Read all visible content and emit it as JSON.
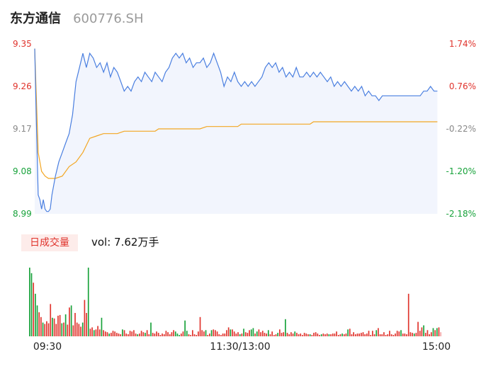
{
  "header": {
    "name": "东方通信",
    "code": "600776.SH"
  },
  "volume": {
    "badge": "日成交量",
    "label": "vol: 7.62万手"
  },
  "colors": {
    "up": "#e0332c",
    "down": "#17a23a",
    "flat": "#888888",
    "price_line": "#4a7fe0",
    "avg_line": "#f3a622",
    "area_fill": "#f2f5fd"
  },
  "chart_data": {
    "type": "line",
    "y_left_ticks": [
      "9.35",
      "9.26",
      "9.17",
      "9.08",
      "8.99"
    ],
    "y_right_ticks": [
      "1.74%",
      "0.76%",
      "-0.22%",
      "-1.20%",
      "-2.18%"
    ],
    "tick_colors": [
      "#e0332c",
      "#e0332c",
      "#888888",
      "#17a23a",
      "#17a23a"
    ],
    "ylim": [
      8.99,
      9.35
    ],
    "x_labels": [
      "09:30",
      "11:30/13:00",
      "15:00"
    ],
    "total_minutes": 240,
    "price_series": [
      [
        0,
        9.34
      ],
      [
        1,
        9.18
      ],
      [
        2,
        9.03
      ],
      [
        3,
        9.02
      ],
      [
        4,
        9.0
      ],
      [
        5,
        9.02
      ],
      [
        6,
        9.0
      ],
      [
        7,
        8.995
      ],
      [
        8,
        8.995
      ],
      [
        9,
        9.0
      ],
      [
        10,
        9.03
      ],
      [
        12,
        9.07
      ],
      [
        14,
        9.1
      ],
      [
        16,
        9.12
      ],
      [
        18,
        9.14
      ],
      [
        20,
        9.16
      ],
      [
        22,
        9.2
      ],
      [
        24,
        9.27
      ],
      [
        26,
        9.3
      ],
      [
        28,
        9.33
      ],
      [
        30,
        9.3
      ],
      [
        32,
        9.33
      ],
      [
        34,
        9.32
      ],
      [
        36,
        9.3
      ],
      [
        38,
        9.31
      ],
      [
        40,
        9.29
      ],
      [
        42,
        9.31
      ],
      [
        44,
        9.28
      ],
      [
        46,
        9.3
      ],
      [
        48,
        9.29
      ],
      [
        50,
        9.27
      ],
      [
        52,
        9.25
      ],
      [
        54,
        9.26
      ],
      [
        56,
        9.25
      ],
      [
        58,
        9.27
      ],
      [
        60,
        9.28
      ],
      [
        62,
        9.27
      ],
      [
        64,
        9.29
      ],
      [
        66,
        9.28
      ],
      [
        68,
        9.27
      ],
      [
        70,
        9.29
      ],
      [
        72,
        9.28
      ],
      [
        74,
        9.27
      ],
      [
        76,
        9.29
      ],
      [
        78,
        9.3
      ],
      [
        80,
        9.32
      ],
      [
        82,
        9.33
      ],
      [
        84,
        9.32
      ],
      [
        86,
        9.33
      ],
      [
        88,
        9.31
      ],
      [
        90,
        9.32
      ],
      [
        92,
        9.3
      ],
      [
        94,
        9.31
      ],
      [
        96,
        9.31
      ],
      [
        98,
        9.32
      ],
      [
        100,
        9.3
      ],
      [
        102,
        9.31
      ],
      [
        104,
        9.33
      ],
      [
        106,
        9.31
      ],
      [
        108,
        9.29
      ],
      [
        110,
        9.26
      ],
      [
        112,
        9.28
      ],
      [
        114,
        9.27
      ],
      [
        116,
        9.29
      ],
      [
        118,
        9.27
      ],
      [
        120,
        9.26
      ],
      [
        122,
        9.27
      ],
      [
        124,
        9.26
      ],
      [
        126,
        9.27
      ],
      [
        128,
        9.26
      ],
      [
        130,
        9.27
      ],
      [
        132,
        9.28
      ],
      [
        134,
        9.3
      ],
      [
        136,
        9.31
      ],
      [
        138,
        9.3
      ],
      [
        140,
        9.31
      ],
      [
        142,
        9.29
      ],
      [
        144,
        9.3
      ],
      [
        146,
        9.28
      ],
      [
        148,
        9.29
      ],
      [
        150,
        9.28
      ],
      [
        152,
        9.3
      ],
      [
        154,
        9.28
      ],
      [
        156,
        9.28
      ],
      [
        158,
        9.29
      ],
      [
        160,
        9.28
      ],
      [
        162,
        9.29
      ],
      [
        164,
        9.28
      ],
      [
        166,
        9.29
      ],
      [
        168,
        9.28
      ],
      [
        170,
        9.27
      ],
      [
        172,
        9.28
      ],
      [
        174,
        9.26
      ],
      [
        176,
        9.27
      ],
      [
        178,
        9.26
      ],
      [
        180,
        9.27
      ],
      [
        182,
        9.26
      ],
      [
        184,
        9.25
      ],
      [
        186,
        9.26
      ],
      [
        188,
        9.25
      ],
      [
        190,
        9.26
      ],
      [
        192,
        9.24
      ],
      [
        194,
        9.25
      ],
      [
        196,
        9.24
      ],
      [
        198,
        9.24
      ],
      [
        200,
        9.23
      ],
      [
        202,
        9.24
      ],
      [
        204,
        9.24
      ],
      [
        206,
        9.24
      ],
      [
        208,
        9.24
      ],
      [
        210,
        9.24
      ],
      [
        212,
        9.24
      ],
      [
        214,
        9.24
      ],
      [
        216,
        9.24
      ],
      [
        218,
        9.24
      ],
      [
        220,
        9.24
      ],
      [
        222,
        9.24
      ],
      [
        224,
        9.24
      ],
      [
        226,
        9.25
      ],
      [
        228,
        9.25
      ],
      [
        230,
        9.26
      ],
      [
        232,
        9.25
      ],
      [
        234,
        9.25
      ]
    ],
    "avg_series": [
      [
        0,
        9.34
      ],
      [
        2,
        9.12
      ],
      [
        4,
        9.08
      ],
      [
        6,
        9.07
      ],
      [
        8,
        9.065
      ],
      [
        12,
        9.065
      ],
      [
        16,
        9.07
      ],
      [
        20,
        9.09
      ],
      [
        24,
        9.1
      ],
      [
        28,
        9.12
      ],
      [
        32,
        9.15
      ],
      [
        36,
        9.155
      ],
      [
        40,
        9.16
      ],
      [
        44,
        9.16
      ],
      [
        48,
        9.16
      ],
      [
        52,
        9.165
      ],
      [
        56,
        9.165
      ],
      [
        60,
        9.165
      ],
      [
        64,
        9.165
      ],
      [
        70,
        9.165
      ],
      [
        72,
        9.17
      ],
      [
        80,
        9.17
      ],
      [
        90,
        9.17
      ],
      [
        96,
        9.17
      ],
      [
        100,
        9.175
      ],
      [
        110,
        9.175
      ],
      [
        118,
        9.175
      ],
      [
        120,
        9.18
      ],
      [
        130,
        9.18
      ],
      [
        140,
        9.18
      ],
      [
        150,
        9.18
      ],
      [
        160,
        9.18
      ],
      [
        162,
        9.185
      ],
      [
        170,
        9.185
      ],
      [
        180,
        9.185
      ],
      [
        190,
        9.185
      ],
      [
        200,
        9.185
      ],
      [
        210,
        9.185
      ],
      [
        220,
        9.185
      ],
      [
        230,
        9.185
      ],
      [
        234,
        9.185
      ]
    ],
    "volume_bars": [
      {
        "v": 100,
        "c": "down"
      },
      {
        "v": 92,
        "c": "down"
      },
      {
        "v": 78,
        "c": "up"
      },
      {
        "v": 62,
        "c": "down"
      },
      {
        "v": 45,
        "c": "down"
      },
      {
        "v": 35,
        "c": "up"
      },
      {
        "v": 28,
        "c": "up"
      },
      {
        "v": 20,
        "c": "down"
      },
      {
        "v": 18,
        "c": "up"
      },
      {
        "v": 22,
        "c": "up"
      },
      {
        "v": 19,
        "c": "up"
      },
      {
        "v": 47,
        "c": "up"
      },
      {
        "v": 27,
        "c": "down"
      },
      {
        "v": 26,
        "c": "up"
      },
      {
        "v": 18,
        "c": "up"
      },
      {
        "v": 30,
        "c": "up"
      },
      {
        "v": 31,
        "c": "up"
      },
      {
        "v": 19,
        "c": "down"
      },
      {
        "v": 20,
        "c": "up"
      },
      {
        "v": 32,
        "c": "down"
      },
      {
        "v": 17,
        "c": "up"
      },
      {
        "v": 42,
        "c": "up"
      },
      {
        "v": 45,
        "c": "down"
      },
      {
        "v": 16,
        "c": "up"
      },
      {
        "v": 34,
        "c": "up"
      },
      {
        "v": 20,
        "c": "up"
      },
      {
        "v": 18,
        "c": "up"
      },
      {
        "v": 14,
        "c": "up"
      },
      {
        "v": 20,
        "c": "down"
      },
      {
        "v": 53,
        "c": "up"
      },
      {
        "v": 34,
        "c": "up"
      },
      {
        "v": 100,
        "c": "down"
      },
      {
        "v": 11,
        "c": "up"
      },
      {
        "v": 13,
        "c": "up"
      },
      {
        "v": 9,
        "c": "down"
      },
      {
        "v": 10,
        "c": "up"
      },
      {
        "v": 15,
        "c": "up"
      },
      {
        "v": 10,
        "c": "up"
      },
      {
        "v": 27,
        "c": "down"
      },
      {
        "v": 9,
        "c": "up"
      },
      {
        "v": 7,
        "c": "up"
      },
      {
        "v": 6,
        "c": "up"
      },
      {
        "v": 4,
        "c": "down"
      },
      {
        "v": 5,
        "c": "up"
      },
      {
        "v": 8,
        "c": "up"
      },
      {
        "v": 7,
        "c": "up"
      },
      {
        "v": 5,
        "c": "up"
      },
      {
        "v": 4,
        "c": "up"
      },
      {
        "v": 3,
        "c": "up"
      },
      {
        "v": 10,
        "c": "down"
      },
      {
        "v": 9,
        "c": "up"
      },
      {
        "v": 4,
        "c": "up"
      },
      {
        "v": 3,
        "c": "up"
      },
      {
        "v": 8,
        "c": "up"
      },
      {
        "v": 7,
        "c": "up"
      },
      {
        "v": 9,
        "c": "up"
      },
      {
        "v": 4,
        "c": "up"
      },
      {
        "v": 3,
        "c": "down"
      },
      {
        "v": 4,
        "c": "up"
      },
      {
        "v": 8,
        "c": "up"
      },
      {
        "v": 6,
        "c": "up"
      },
      {
        "v": 5,
        "c": "down"
      },
      {
        "v": 9,
        "c": "up"
      },
      {
        "v": 3,
        "c": "up"
      },
      {
        "v": 20,
        "c": "down"
      },
      {
        "v": 5,
        "c": "up"
      },
      {
        "v": 4,
        "c": "up"
      },
      {
        "v": 7,
        "c": "up"
      },
      {
        "v": 5,
        "c": "up"
      },
      {
        "v": 2,
        "c": "up"
      },
      {
        "v": 4,
        "c": "up"
      },
      {
        "v": 3,
        "c": "up"
      },
      {
        "v": 8,
        "c": "up"
      },
      {
        "v": 6,
        "c": "up"
      },
      {
        "v": 3,
        "c": "up"
      },
      {
        "v": 6,
        "c": "up"
      },
      {
        "v": 9,
        "c": "up"
      },
      {
        "v": 7,
        "c": "down"
      },
      {
        "v": 4,
        "c": "down"
      },
      {
        "v": 2,
        "c": "down"
      },
      {
        "v": 4,
        "c": "up"
      },
      {
        "v": 7,
        "c": "up"
      },
      {
        "v": 23,
        "c": "down"
      },
      {
        "v": 8,
        "c": "down"
      },
      {
        "v": 3,
        "c": "up"
      },
      {
        "v": 2,
        "c": "up"
      },
      {
        "v": 9,
        "c": "up"
      },
      {
        "v": 3,
        "c": "up"
      },
      {
        "v": 2,
        "c": "up"
      },
      {
        "v": 7,
        "c": "up"
      },
      {
        "v": 28,
        "c": "up"
      },
      {
        "v": 9,
        "c": "up"
      },
      {
        "v": 7,
        "c": "up"
      },
      {
        "v": 9,
        "c": "down"
      },
      {
        "v": 2,
        "c": "up"
      },
      {
        "v": 4,
        "c": "up"
      },
      {
        "v": 9,
        "c": "down"
      },
      {
        "v": 10,
        "c": "up"
      },
      {
        "v": 9,
        "c": "up"
      },
      {
        "v": 7,
        "c": "up"
      },
      {
        "v": 3,
        "c": "up"
      },
      {
        "v": 2,
        "c": "up"
      },
      {
        "v": 4,
        "c": "up"
      },
      {
        "v": 4,
        "c": "up"
      },
      {
        "v": 9,
        "c": "up"
      },
      {
        "v": 13,
        "c": "up"
      },
      {
        "v": 10,
        "c": "down"
      },
      {
        "v": 10,
        "c": "up"
      },
      {
        "v": 7,
        "c": "up"
      },
      {
        "v": 4,
        "c": "up"
      },
      {
        "v": 6,
        "c": "up"
      },
      {
        "v": 3,
        "c": "down"
      },
      {
        "v": 4,
        "c": "up"
      },
      {
        "v": 11,
        "c": "down"
      },
      {
        "v": 6,
        "c": "up"
      },
      {
        "v": 5,
        "c": "up"
      },
      {
        "v": 9,
        "c": "up"
      },
      {
        "v": 10,
        "c": "down"
      },
      {
        "v": 12,
        "c": "down"
      },
      {
        "v": 4,
        "c": "up"
      },
      {
        "v": 7,
        "c": "down"
      },
      {
        "v": 10,
        "c": "up"
      },
      {
        "v": 6,
        "c": "up"
      },
      {
        "v": 8,
        "c": "up"
      },
      {
        "v": 5,
        "c": "up"
      },
      {
        "v": 4,
        "c": "up"
      },
      {
        "v": 9,
        "c": "down"
      },
      {
        "v": 3,
        "c": "up"
      },
      {
        "v": 7,
        "c": "up"
      },
      {
        "v": 2,
        "c": "up"
      },
      {
        "v": 3,
        "c": "up"
      },
      {
        "v": 5,
        "c": "down"
      },
      {
        "v": 10,
        "c": "up"
      },
      {
        "v": 5,
        "c": "up"
      },
      {
        "v": 6,
        "c": "up"
      },
      {
        "v": 25,
        "c": "down"
      },
      {
        "v": 5,
        "c": "up"
      },
      {
        "v": 3,
        "c": "up"
      },
      {
        "v": 6,
        "c": "up"
      },
      {
        "v": 4,
        "c": "up"
      },
      {
        "v": 7,
        "c": "down"
      },
      {
        "v": 5,
        "c": "up"
      },
      {
        "v": 3,
        "c": "up"
      },
      {
        "v": 4,
        "c": "up"
      },
      {
        "v": 2,
        "c": "up"
      },
      {
        "v": 5,
        "c": "up"
      },
      {
        "v": 4,
        "c": "up"
      },
      {
        "v": 3,
        "c": "up"
      },
      {
        "v": 3,
        "c": "down"
      },
      {
        "v": 2,
        "c": "up"
      },
      {
        "v": 5,
        "c": "up"
      },
      {
        "v": 6,
        "c": "up"
      },
      {
        "v": 4,
        "c": "up"
      },
      {
        "v": 2,
        "c": "up"
      },
      {
        "v": 3,
        "c": "down"
      },
      {
        "v": 4,
        "c": "up"
      },
      {
        "v": 3,
        "c": "up"
      },
      {
        "v": 4,
        "c": "up"
      },
      {
        "v": 3,
        "c": "down"
      },
      {
        "v": 3,
        "c": "up"
      },
      {
        "v": 4,
        "c": "up"
      },
      {
        "v": 4,
        "c": "up"
      },
      {
        "v": 7,
        "c": "up"
      },
      {
        "v": 2,
        "c": "up"
      },
      {
        "v": 3,
        "c": "up"
      },
      {
        "v": 4,
        "c": "down"
      },
      {
        "v": 3,
        "c": "up"
      },
      {
        "v": 4,
        "c": "up"
      },
      {
        "v": 10,
        "c": "down"
      },
      {
        "v": 11,
        "c": "up"
      },
      {
        "v": 3,
        "c": "up"
      },
      {
        "v": 6,
        "c": "up"
      },
      {
        "v": 3,
        "c": "up"
      },
      {
        "v": 4,
        "c": "up"
      },
      {
        "v": 4,
        "c": "up"
      },
      {
        "v": 5,
        "c": "up"
      },
      {
        "v": 6,
        "c": "up"
      },
      {
        "v": 3,
        "c": "up"
      },
      {
        "v": 4,
        "c": "up"
      },
      {
        "v": 8,
        "c": "up"
      },
      {
        "v": 2,
        "c": "up"
      },
      {
        "v": 8,
        "c": "up"
      },
      {
        "v": 3,
        "c": "up"
      },
      {
        "v": 9,
        "c": "down"
      },
      {
        "v": 12,
        "c": "up"
      },
      {
        "v": 3,
        "c": "up"
      },
      {
        "v": 3,
        "c": "up"
      },
      {
        "v": 6,
        "c": "up"
      },
      {
        "v": 2,
        "c": "up"
      },
      {
        "v": 3,
        "c": "up"
      },
      {
        "v": 8,
        "c": "up"
      },
      {
        "v": 3,
        "c": "up"
      },
      {
        "v": 2,
        "c": "up"
      },
      {
        "v": 4,
        "c": "up"
      },
      {
        "v": 8,
        "c": "up"
      },
      {
        "v": 7,
        "c": "up"
      },
      {
        "v": 9,
        "c": "down"
      },
      {
        "v": 4,
        "c": "up"
      },
      {
        "v": 4,
        "c": "up"
      },
      {
        "v": 3,
        "c": "up"
      },
      {
        "v": 62,
        "c": "up"
      },
      {
        "v": 6,
        "c": "up"
      },
      {
        "v": 5,
        "c": "up"
      },
      {
        "v": 4,
        "c": "down"
      },
      {
        "v": 5,
        "c": "up"
      },
      {
        "v": 21,
        "c": "up"
      },
      {
        "v": 8,
        "c": "up"
      },
      {
        "v": 13,
        "c": "up"
      },
      {
        "v": 16,
        "c": "down"
      },
      {
        "v": 5,
        "c": "up"
      },
      {
        "v": 9,
        "c": "up"
      },
      {
        "v": 3,
        "c": "up"
      },
      {
        "v": 6,
        "c": "up"
      },
      {
        "v": 12,
        "c": "down"
      },
      {
        "v": 9,
        "c": "up"
      },
      {
        "v": 12,
        "c": "down"
      },
      {
        "v": 13,
        "c": "up"
      },
      {
        "v": 6,
        "c": "flat"
      }
    ]
  }
}
